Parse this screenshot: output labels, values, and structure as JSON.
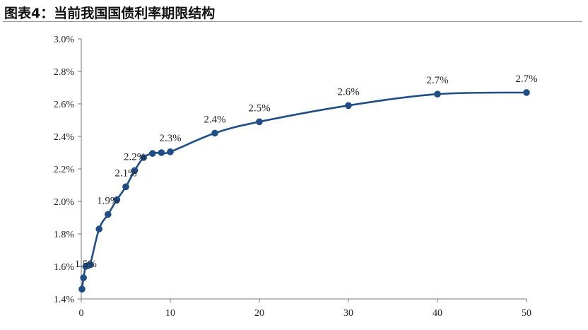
{
  "header": {
    "title": "图表4：当前我国国债利率期限结构"
  },
  "chart_data": {
    "type": "line",
    "title": "",
    "xlabel": "",
    "ylabel": "",
    "xlim": [
      0,
      50
    ],
    "ylim": [
      1.4,
      3.0
    ],
    "x_ticks": [
      0,
      10,
      20,
      30,
      40,
      50
    ],
    "y_ticks": [
      1.4,
      1.6,
      1.8,
      2.0,
      2.2,
      2.4,
      2.6,
      2.8,
      3.0
    ],
    "y_tick_labels": [
      "1.4%",
      "1.6%",
      "1.8%",
      "2.0%",
      "2.2%",
      "2.4%",
      "2.6%",
      "2.8%",
      "3.0%"
    ],
    "grid": false,
    "series": [
      {
        "color": "#1f4e87",
        "x": [
          0.08,
          0.25,
          0.5,
          0.75,
          1,
          2,
          3,
          4,
          5,
          6,
          7,
          8,
          9,
          10,
          15,
          20,
          30,
          40,
          50
        ],
        "values": [
          1.46,
          1.53,
          1.6,
          1.605,
          1.61,
          1.83,
          1.92,
          2.01,
          2.09,
          2.19,
          2.27,
          2.295,
          2.3,
          2.305,
          2.42,
          2.49,
          2.59,
          2.66,
          2.67
        ]
      }
    ],
    "annotations": [
      {
        "text": "1.5%",
        "x": 0.5,
        "y": 1.53
      },
      {
        "text": "1.9%",
        "x": 3,
        "y": 1.92
      },
      {
        "text": "2.1%",
        "x": 5,
        "y": 2.09
      },
      {
        "text": "2.2%",
        "x": 6,
        "y": 2.19
      },
      {
        "text": "2.3%",
        "x": 10,
        "y": 2.305
      },
      {
        "text": "2.4%",
        "x": 15,
        "y": 2.42
      },
      {
        "text": "2.5%",
        "x": 20,
        "y": 2.49
      },
      {
        "text": "2.6%",
        "x": 30,
        "y": 2.59
      },
      {
        "text": "2.7%",
        "x": 40,
        "y": 2.66
      },
      {
        "text": "2.7%",
        "x": 50,
        "y": 2.67
      }
    ]
  }
}
